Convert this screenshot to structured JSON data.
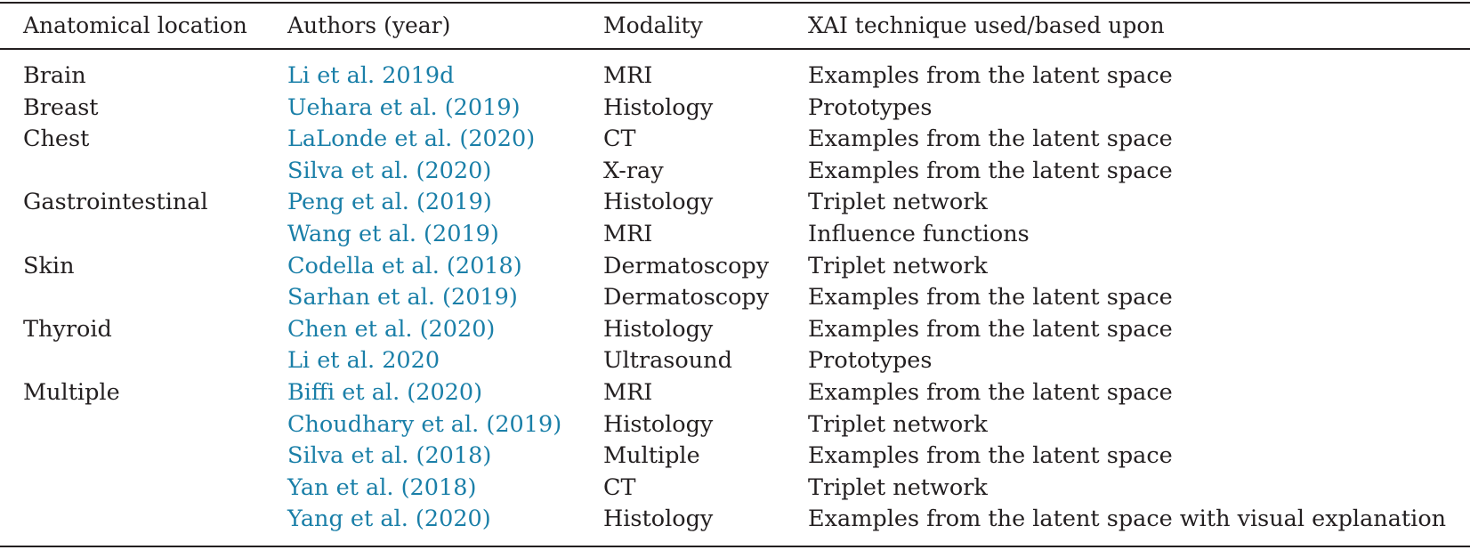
{
  "table": {
    "headers": [
      "Anatomical location",
      "Authors (year)",
      "Modality",
      "XAI technique used/based upon"
    ],
    "rows": [
      {
        "location": "Brain",
        "authors": "Li et al. 2019d",
        "modality": "MRI",
        "technique": "Examples from the latent space"
      },
      {
        "location": "Breast",
        "authors": "Uehara et al. (2019)",
        "modality": "Histology",
        "technique": "Prototypes"
      },
      {
        "location": "Chest",
        "authors": "LaLonde et al. (2020)",
        "modality": "CT",
        "technique": "Examples from the latent space"
      },
      {
        "location": "",
        "authors": "Silva et al. (2020)",
        "modality": "X-ray",
        "technique": "Examples from the latent space"
      },
      {
        "location": "Gastrointestinal",
        "authors": "Peng et al. (2019)",
        "modality": "Histology",
        "technique": "Triplet network"
      },
      {
        "location": "",
        "authors": "Wang et al. (2019)",
        "modality": "MRI",
        "technique": "Influence functions"
      },
      {
        "location": "Skin",
        "authors": "Codella et al. (2018)",
        "modality": "Dermatoscopy",
        "technique": "Triplet network"
      },
      {
        "location": "",
        "authors": "Sarhan et al. (2019)",
        "modality": "Dermatoscopy",
        "technique": "Examples from the latent space"
      },
      {
        "location": "Thyroid",
        "authors": "Chen et al. (2020)",
        "modality": "Histology",
        "technique": "Examples from the latent space"
      },
      {
        "location": "",
        "authors": "Li et al. 2020",
        "modality": "Ultrasound",
        "technique": "Prototypes"
      },
      {
        "location": "Multiple",
        "authors": "Biffi et al. (2020)",
        "modality": "MRI",
        "technique": "Examples from the latent space"
      },
      {
        "location": "",
        "authors": "Choudhary et al. (2019)",
        "modality": "Histology",
        "technique": "Triplet network"
      },
      {
        "location": "",
        "authors": "Silva et al. (2018)",
        "modality": "Multiple",
        "technique": "Examples from the latent space"
      },
      {
        "location": "",
        "authors": "Yan et al. (2018)",
        "modality": "CT",
        "technique": "Triplet network"
      },
      {
        "location": "",
        "authors": "Yang et al. (2020)",
        "modality": "Histology",
        "technique": "Examples from the latent space with visual explanation"
      }
    ]
  },
  "colors": {
    "text": "#231f20",
    "link": "#1a7fa8"
  }
}
